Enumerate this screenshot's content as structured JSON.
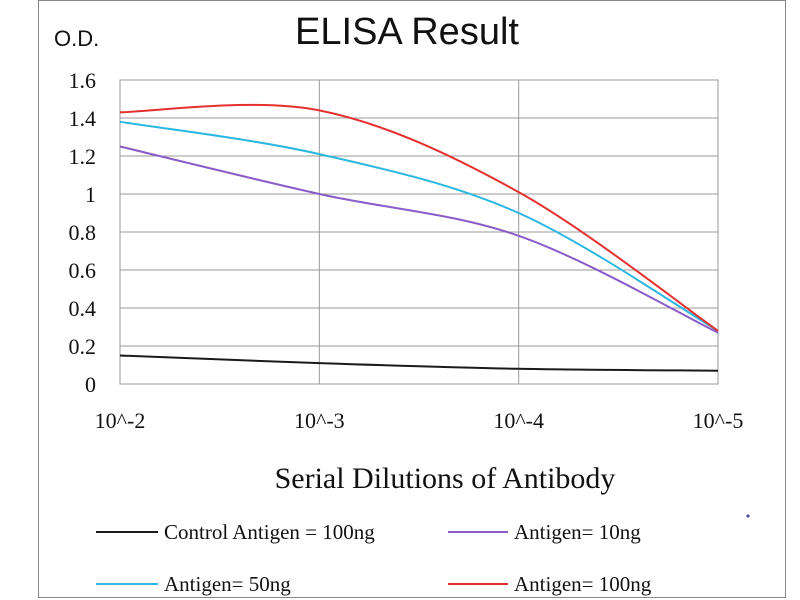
{
  "chart_data": {
    "type": "line",
    "title": "ELISA Result",
    "ylabel": "O.D.",
    "xlabel": "Serial Dilutions  of Antibody",
    "x": [
      "10^-2",
      "10^-3",
      "10^-4",
      "10^-5"
    ],
    "ylim": [
      0,
      1.6
    ],
    "yticks": [
      "0",
      "0.2",
      "0.4",
      "0.6",
      "0.8",
      "1",
      "1.2",
      "1.4",
      "1.6"
    ],
    "grid": true,
    "legend_position": "bottom",
    "series": [
      {
        "name": "Control Antigen = 100ng",
        "color": "#1a1a1a",
        "values": [
          0.15,
          0.11,
          0.08,
          0.07
        ]
      },
      {
        "name": "Antigen= 10ng",
        "color": "#8a5cc8",
        "values": [
          1.25,
          1.0,
          0.78,
          0.27
        ]
      },
      {
        "name": "Antigen= 50ng",
        "color": "#2bb7e0",
        "values": [
          1.38,
          1.21,
          0.9,
          0.28
        ]
      },
      {
        "name": "Antigen= 100ng",
        "color": "#e53030",
        "values": [
          1.43,
          1.44,
          1.01,
          0.28
        ]
      }
    ]
  }
}
